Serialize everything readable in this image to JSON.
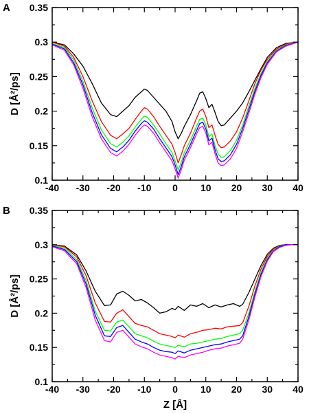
{
  "chart_data": [
    {
      "type": "line",
      "panel_label": "A",
      "xlabel": "",
      "ylabel": "D [Å²/ps]",
      "xlim": [
        -40,
        40
      ],
      "ylim": [
        0.1,
        0.35
      ],
      "xticks": [
        "-40",
        "-30",
        "-20",
        "-10",
        "0",
        "10",
        "20",
        "30",
        "40"
      ],
      "yticks": [
        "0.1",
        "0.15",
        "0.2",
        "0.25",
        "0.3",
        "0.35"
      ],
      "grid": false,
      "series": [
        {
          "color": "#000000",
          "x": [
            -40,
            -36,
            -33,
            -30,
            -27,
            -24,
            -21,
            -19,
            -17,
            -15,
            -13,
            -11,
            -10,
            -9,
            -7,
            -5,
            -3,
            -1,
            0,
            1,
            2,
            3,
            5,
            7,
            8,
            9,
            10,
            11,
            12,
            13,
            14,
            15,
            16,
            18,
            20,
            22,
            24,
            26,
            28,
            30,
            33,
            36,
            40
          ],
          "y": [
            0.3,
            0.296,
            0.283,
            0.265,
            0.24,
            0.212,
            0.195,
            0.192,
            0.2,
            0.208,
            0.22,
            0.228,
            0.232,
            0.23,
            0.22,
            0.21,
            0.2,
            0.185,
            0.17,
            0.16,
            0.168,
            0.178,
            0.195,
            0.215,
            0.226,
            0.228,
            0.218,
            0.205,
            0.21,
            0.198,
            0.185,
            0.179,
            0.18,
            0.19,
            0.2,
            0.212,
            0.228,
            0.245,
            0.262,
            0.278,
            0.292,
            0.298,
            0.3
          ]
        },
        {
          "color": "#ff0000",
          "x": [
            -40,
            -36,
            -33,
            -30,
            -27,
            -24,
            -21,
            -19,
            -17,
            -15,
            -13,
            -11,
            -10,
            -9,
            -7,
            -5,
            -3,
            -1,
            0,
            1,
            2,
            3,
            5,
            7,
            8,
            9,
            10,
            11,
            12,
            13,
            14,
            15,
            16,
            18,
            20,
            22,
            24,
            26,
            28,
            30,
            33,
            36,
            40
          ],
          "y": [
            0.3,
            0.294,
            0.278,
            0.25,
            0.215,
            0.185,
            0.165,
            0.16,
            0.167,
            0.175,
            0.188,
            0.2,
            0.205,
            0.203,
            0.192,
            0.178,
            0.165,
            0.152,
            0.14,
            0.125,
            0.137,
            0.15,
            0.168,
            0.19,
            0.2,
            0.203,
            0.192,
            0.176,
            0.18,
            0.165,
            0.152,
            0.147,
            0.148,
            0.157,
            0.17,
            0.19,
            0.215,
            0.24,
            0.26,
            0.275,
            0.29,
            0.297,
            0.3
          ]
        },
        {
          "color": "#00ff00",
          "x": [
            -40,
            -36,
            -33,
            -30,
            -27,
            -24,
            -21,
            -19,
            -17,
            -15,
            -13,
            -11,
            -10,
            -9,
            -7,
            -5,
            -3,
            -1,
            0,
            1,
            2,
            3,
            5,
            7,
            8,
            9,
            10,
            11,
            12,
            13,
            14,
            15,
            16,
            18,
            20,
            22,
            24,
            26,
            28,
            30,
            33,
            36,
            40
          ],
          "y": [
            0.298,
            0.292,
            0.274,
            0.243,
            0.205,
            0.173,
            0.153,
            0.148,
            0.155,
            0.164,
            0.177,
            0.188,
            0.193,
            0.191,
            0.18,
            0.167,
            0.153,
            0.14,
            0.128,
            0.115,
            0.126,
            0.14,
            0.158,
            0.178,
            0.188,
            0.19,
            0.18,
            0.163,
            0.167,
            0.15,
            0.138,
            0.133,
            0.134,
            0.143,
            0.158,
            0.18,
            0.207,
            0.233,
            0.255,
            0.272,
            0.288,
            0.296,
            0.3
          ]
        },
        {
          "color": "#0000ff",
          "x": [
            -40,
            -36,
            -33,
            -30,
            -27,
            -24,
            -21,
            -19,
            -17,
            -15,
            -13,
            -11,
            -10,
            -9,
            -7,
            -5,
            -3,
            -1,
            0,
            1,
            2,
            3,
            5,
            7,
            8,
            9,
            10,
            11,
            12,
            13,
            14,
            15,
            16,
            18,
            20,
            22,
            24,
            26,
            28,
            30,
            33,
            36,
            40
          ],
          "y": [
            0.297,
            0.29,
            0.27,
            0.238,
            0.198,
            0.166,
            0.146,
            0.141,
            0.148,
            0.158,
            0.171,
            0.182,
            0.186,
            0.184,
            0.174,
            0.16,
            0.147,
            0.134,
            0.122,
            0.108,
            0.12,
            0.134,
            0.152,
            0.172,
            0.182,
            0.184,
            0.174,
            0.157,
            0.161,
            0.144,
            0.131,
            0.127,
            0.128,
            0.137,
            0.152,
            0.175,
            0.202,
            0.229,
            0.252,
            0.27,
            0.287,
            0.295,
            0.3
          ]
        },
        {
          "color": "#ff00ff",
          "x": [
            -40,
            -36,
            -33,
            -30,
            -27,
            -24,
            -21,
            -19,
            -17,
            -15,
            -13,
            -11,
            -10,
            -9,
            -7,
            -5,
            -3,
            -1,
            0,
            1,
            2,
            3,
            5,
            7,
            8,
            9,
            10,
            11,
            12,
            13,
            14,
            15,
            16,
            18,
            20,
            22,
            24,
            26,
            28,
            30,
            33,
            36,
            40
          ],
          "y": [
            0.296,
            0.288,
            0.267,
            0.233,
            0.192,
            0.16,
            0.14,
            0.135,
            0.142,
            0.152,
            0.165,
            0.176,
            0.18,
            0.178,
            0.168,
            0.154,
            0.141,
            0.128,
            0.116,
            0.103,
            0.115,
            0.129,
            0.147,
            0.167,
            0.176,
            0.178,
            0.168,
            0.151,
            0.155,
            0.138,
            0.125,
            0.121,
            0.122,
            0.131,
            0.146,
            0.17,
            0.197,
            0.225,
            0.249,
            0.268,
            0.286,
            0.294,
            0.3
          ]
        }
      ]
    },
    {
      "type": "line",
      "panel_label": "B",
      "xlabel": "Z [Å]",
      "ylabel": "D [Å²/ps]",
      "xlim": [
        -40,
        40
      ],
      "ylim": [
        0.1,
        0.35
      ],
      "xticks": [
        "-40",
        "-30",
        "-20",
        "-10",
        "0",
        "10",
        "20",
        "30",
        "40"
      ],
      "yticks": [
        "0.1",
        "0.15",
        "0.2",
        "0.25",
        "0.3",
        "0.35"
      ],
      "grid": false,
      "series": [
        {
          "color": "#000000",
          "x": [
            -40,
            -36,
            -32,
            -29,
            -26,
            -23,
            -21,
            -19,
            -17,
            -15,
            -13,
            -11,
            -9,
            -7,
            -5,
            -3,
            -1,
            0,
            1,
            3,
            5,
            7,
            9,
            11,
            13,
            15,
            17,
            19,
            21,
            22,
            24,
            26,
            28,
            30,
            32,
            34,
            36,
            38,
            40
          ],
          "y": [
            0.3,
            0.298,
            0.285,
            0.262,
            0.232,
            0.211,
            0.212,
            0.228,
            0.232,
            0.226,
            0.218,
            0.22,
            0.215,
            0.208,
            0.2,
            0.202,
            0.207,
            0.205,
            0.21,
            0.204,
            0.212,
            0.21,
            0.214,
            0.208,
            0.212,
            0.209,
            0.212,
            0.214,
            0.21,
            0.213,
            0.23,
            0.25,
            0.27,
            0.286,
            0.295,
            0.299,
            0.3,
            0.3,
            0.3
          ]
        },
        {
          "color": "#ff0000",
          "x": [
            -40,
            -36,
            -32,
            -29,
            -26,
            -23,
            -21,
            -19,
            -17,
            -15,
            -13,
            -11,
            -9,
            -7,
            -5,
            -3,
            -1,
            0,
            1,
            3,
            5,
            7,
            9,
            11,
            13,
            15,
            17,
            19,
            21,
            22,
            24,
            26,
            28,
            30,
            32,
            34,
            36,
            38,
            40
          ],
          "y": [
            0.3,
            0.297,
            0.282,
            0.255,
            0.215,
            0.188,
            0.187,
            0.2,
            0.205,
            0.195,
            0.185,
            0.182,
            0.18,
            0.175,
            0.17,
            0.168,
            0.166,
            0.164,
            0.168,
            0.165,
            0.17,
            0.172,
            0.175,
            0.176,
            0.178,
            0.177,
            0.18,
            0.181,
            0.182,
            0.186,
            0.21,
            0.24,
            0.265,
            0.283,
            0.294,
            0.298,
            0.3,
            0.3,
            0.3
          ]
        },
        {
          "color": "#00ff00",
          "x": [
            -40,
            -36,
            -32,
            -29,
            -26,
            -23,
            -21,
            -19,
            -17,
            -15,
            -13,
            -11,
            -9,
            -7,
            -5,
            -3,
            -1,
            0,
            1,
            3,
            5,
            7,
            9,
            11,
            13,
            15,
            17,
            19,
            21,
            22,
            24,
            26,
            28,
            30,
            32,
            34,
            36,
            38,
            40
          ],
          "y": [
            0.299,
            0.295,
            0.278,
            0.248,
            0.203,
            0.175,
            0.174,
            0.187,
            0.19,
            0.18,
            0.17,
            0.167,
            0.164,
            0.159,
            0.155,
            0.153,
            0.151,
            0.15,
            0.153,
            0.151,
            0.155,
            0.156,
            0.158,
            0.16,
            0.162,
            0.163,
            0.166,
            0.168,
            0.17,
            0.175,
            0.2,
            0.232,
            0.26,
            0.28,
            0.292,
            0.298,
            0.3,
            0.3,
            0.3
          ]
        },
        {
          "color": "#0000ff",
          "x": [
            -40,
            -36,
            -32,
            -29,
            -26,
            -23,
            -21,
            -19,
            -17,
            -15,
            -13,
            -11,
            -9,
            -7,
            -5,
            -3,
            -1,
            0,
            1,
            3,
            5,
            7,
            9,
            11,
            13,
            15,
            17,
            19,
            21,
            22,
            24,
            26,
            28,
            30,
            32,
            34,
            36,
            38,
            40
          ],
          "y": [
            0.298,
            0.293,
            0.275,
            0.243,
            0.197,
            0.167,
            0.166,
            0.179,
            0.182,
            0.172,
            0.162,
            0.158,
            0.155,
            0.15,
            0.146,
            0.144,
            0.143,
            0.141,
            0.145,
            0.142,
            0.146,
            0.148,
            0.15,
            0.152,
            0.154,
            0.155,
            0.158,
            0.16,
            0.162,
            0.167,
            0.195,
            0.228,
            0.257,
            0.278,
            0.291,
            0.297,
            0.3,
            0.3,
            0.3
          ]
        },
        {
          "color": "#ff00ff",
          "x": [
            -40,
            -36,
            -32,
            -29,
            -26,
            -23,
            -21,
            -19,
            -17,
            -15,
            -13,
            -11,
            -9,
            -7,
            -5,
            -3,
            -1,
            0,
            1,
            3,
            5,
            7,
            9,
            11,
            13,
            15,
            17,
            19,
            21,
            22,
            24,
            26,
            28,
            30,
            32,
            34,
            36,
            38,
            40
          ],
          "y": [
            0.297,
            0.291,
            0.272,
            0.238,
            0.19,
            0.16,
            0.158,
            0.172,
            0.175,
            0.165,
            0.155,
            0.151,
            0.148,
            0.143,
            0.139,
            0.137,
            0.135,
            0.133,
            0.137,
            0.135,
            0.139,
            0.141,
            0.143,
            0.146,
            0.148,
            0.149,
            0.152,
            0.154,
            0.156,
            0.162,
            0.19,
            0.224,
            0.254,
            0.276,
            0.29,
            0.296,
            0.299,
            0.3,
            0.3
          ]
        }
      ]
    }
  ]
}
